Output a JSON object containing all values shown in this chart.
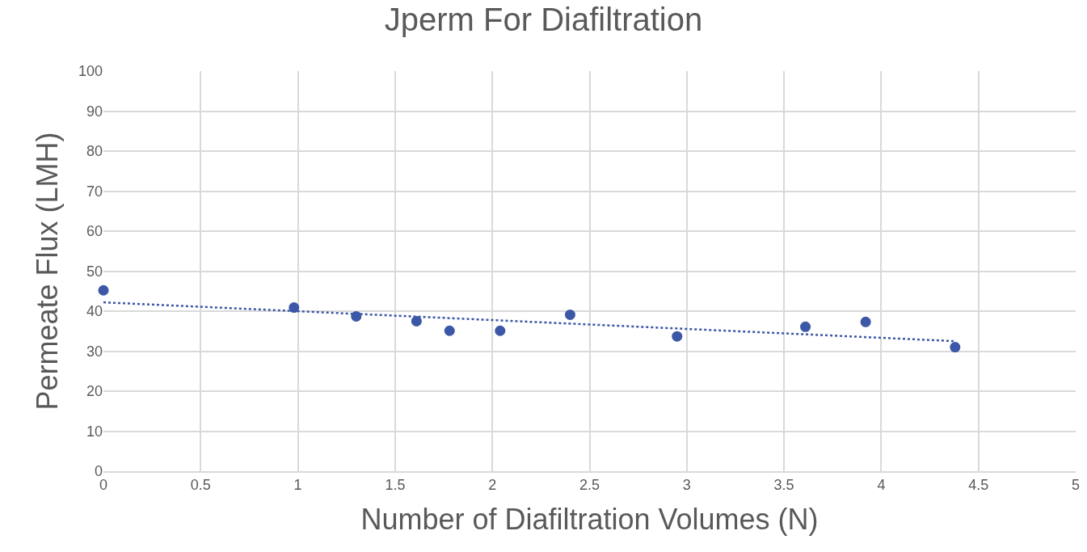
{
  "chart_data": {
    "type": "scatter",
    "title": "Jperm For Diafiltration",
    "xlabel": "Number of Diafiltration Volumes (N)",
    "ylabel": "Permeate Flux (LMH)",
    "xlim": [
      0,
      5
    ],
    "xticks": [
      0,
      0.5,
      1,
      1.5,
      2,
      2.5,
      3,
      3.5,
      4,
      4.5,
      5
    ],
    "ylim": [
      0,
      100
    ],
    "yticks": [
      0,
      10,
      20,
      30,
      40,
      50,
      60,
      70,
      80,
      90,
      100
    ],
    "grid": true,
    "series": [
      {
        "type": "scatter",
        "color": "#3b57a6",
        "marker": "circle",
        "x": [
          0,
          0.98,
          1.3,
          1.61,
          1.78,
          2.04,
          2.4,
          2.95,
          3.61,
          3.92,
          4.38
        ],
        "values": [
          45.2,
          40.9,
          38.7,
          37.5,
          35.1,
          35.1,
          39.1,
          33.7,
          36.1,
          37.3,
          31.0
        ]
      },
      {
        "type": "line",
        "color": "#3b57a6",
        "marker": "none",
        "line_style": "dotted",
        "x": [
          0,
          4.38
        ],
        "values": [
          42.2,
          32.5
        ]
      }
    ]
  }
}
